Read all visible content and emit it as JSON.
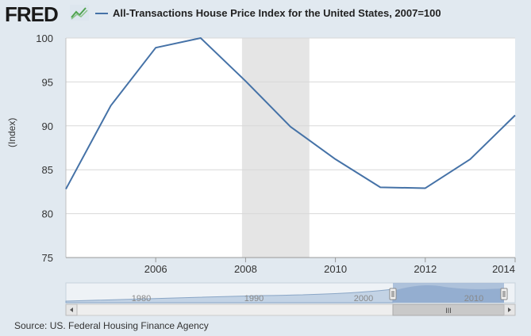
{
  "header": {
    "logo_text": "FRED",
    "logo_icon": "chart-line-icon",
    "title": "All-Transactions House Price Index for the United States, 2007=100"
  },
  "footer": {
    "source": "Source: US. Federal Housing Finance Agency"
  },
  "colors": {
    "series": "#4572a7",
    "recession": "#e5e5e5",
    "background": "#e1e9f0",
    "plot_bg": "#ffffff",
    "navigator_fill": "#a6bcd8"
  },
  "chart_data": {
    "type": "line",
    "title": "All-Transactions House Price Index for the United States, 2007=100",
    "ylabel": "(Index)",
    "xlabel": "",
    "xlim": [
      2004.0,
      2014.0
    ],
    "ylim": [
      75,
      100
    ],
    "yticks": [
      75,
      80,
      85,
      90,
      95,
      100
    ],
    "xticks": [
      2006,
      2008,
      2010,
      2012,
      2014
    ],
    "grid": true,
    "recession_bands": [
      [
        2007.92,
        2009.42
      ]
    ],
    "series": [
      {
        "name": "All-Transactions House Price Index for the United States, 2007=100",
        "x": [
          2004,
          2005,
          2006,
          2007,
          2008,
          2009,
          2010,
          2011,
          2012,
          2013,
          2014
        ],
        "values": [
          82.8,
          92.3,
          98.9,
          100.0,
          95.1,
          89.9,
          86.2,
          83.0,
          82.9,
          86.2,
          91.2
        ]
      }
    ],
    "navigator": {
      "tick_labels": [
        "1980",
        "1990",
        "2000",
        "2010"
      ],
      "handle_label": "III"
    }
  }
}
